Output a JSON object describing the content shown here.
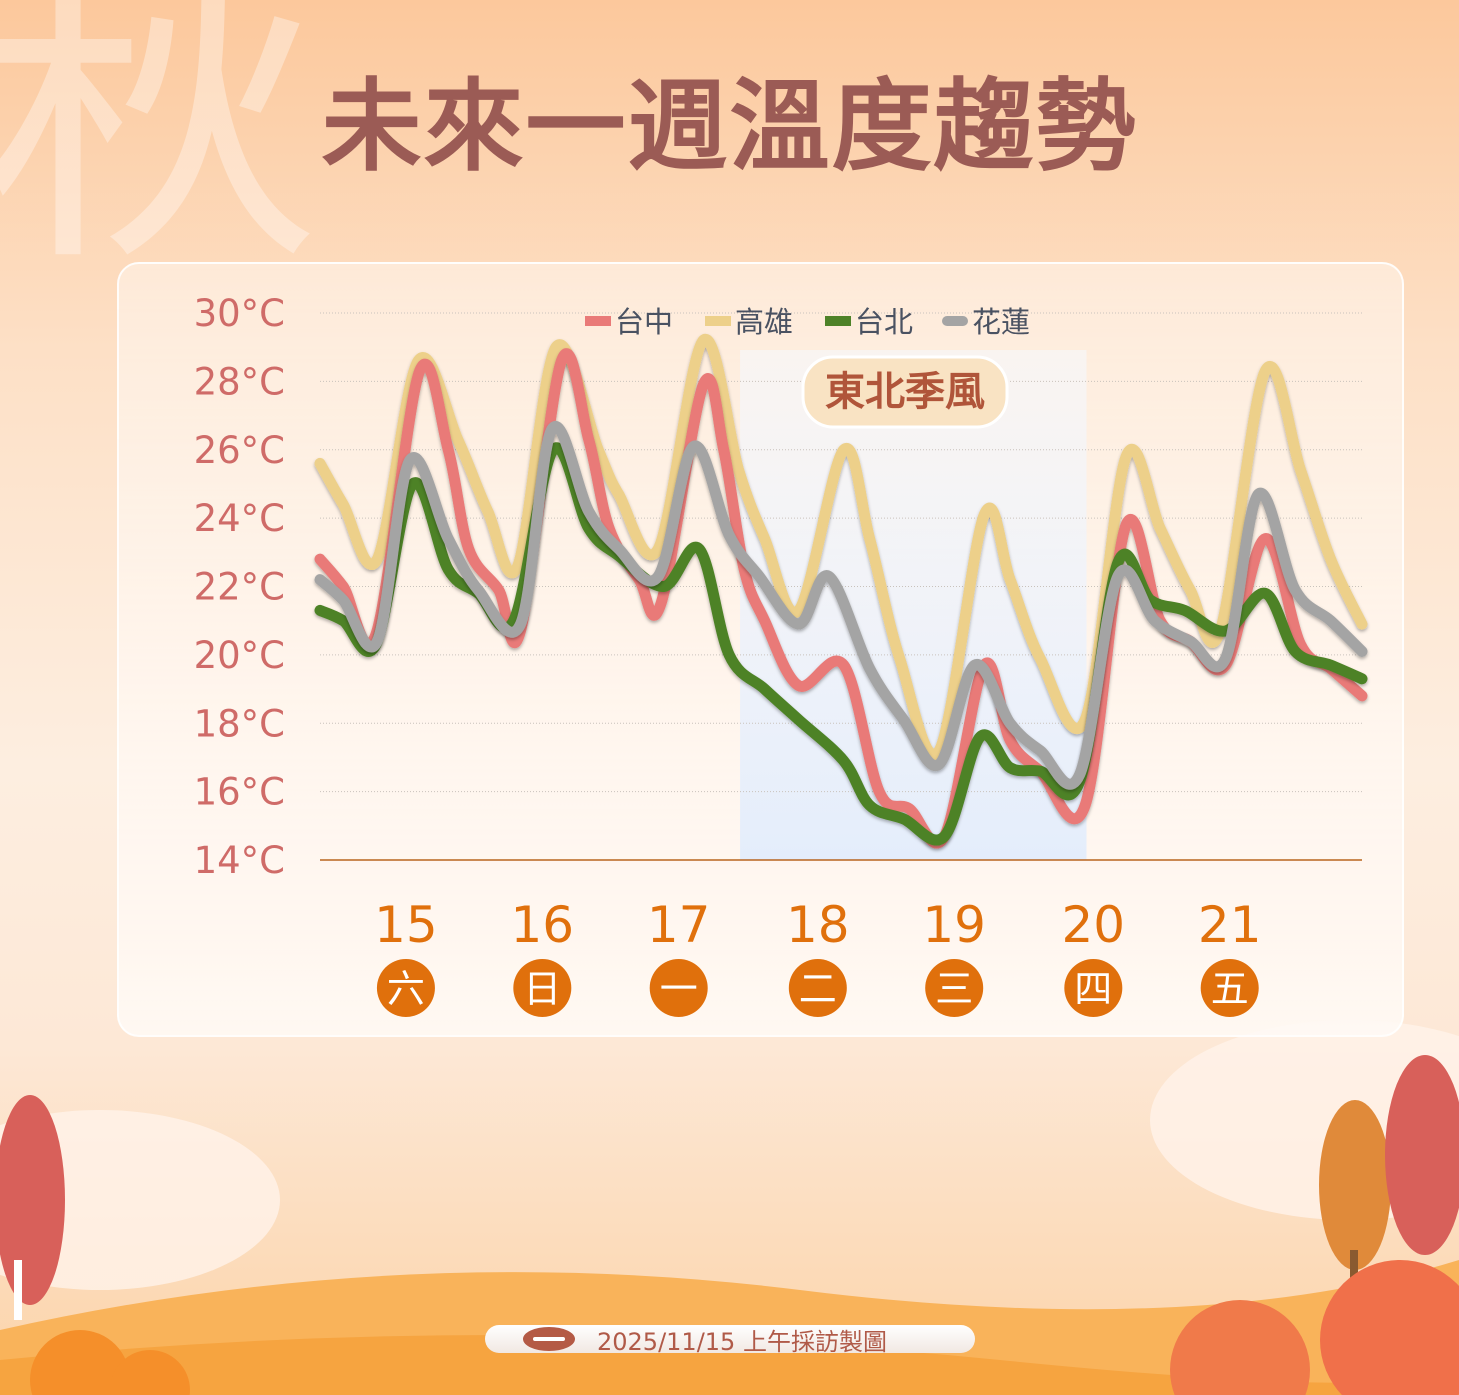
{
  "watermark": "秋",
  "title": "未來一週溫度趨勢",
  "footer": {
    "text": "2025/11/15 上午採訪製圖"
  },
  "colors": {
    "taichung": "#e97a78",
    "kaohsiung": "#edd08a",
    "taipei": "#4e8228",
    "hualien": "#a4a4a4",
    "axis_label": "#cf6b68",
    "day": "#e0700c",
    "title": "#9b5b55"
  },
  "chart_data": {
    "type": "line",
    "title": "未來一週溫度趨勢",
    "ylim": [
      14,
      30
    ],
    "yticks": [
      "14°C",
      "16°C",
      "18°C",
      "20°C",
      "22°C",
      "24°C",
      "26°C",
      "28°C",
      "30°C"
    ],
    "ytick_values": [
      14,
      16,
      18,
      20,
      22,
      24,
      26,
      28,
      30
    ],
    "xlim": [
      14.87,
      22.51
    ],
    "grid": true,
    "legend": "top-center",
    "days": [
      {
        "date": "15",
        "weekday": "六",
        "x": 15.5
      },
      {
        "date": "16",
        "weekday": "日",
        "x": 16.5
      },
      {
        "date": "17",
        "weekday": "一",
        "x": 17.5
      },
      {
        "date": "18",
        "weekday": "二",
        "x": 18.52
      },
      {
        "date": "19",
        "weekday": "三",
        "x": 19.52
      },
      {
        "date": "20",
        "weekday": "四",
        "x": 20.54
      },
      {
        "date": "21",
        "weekday": "五",
        "x": 21.54
      }
    ],
    "annotation": {
      "label": "東北季風",
      "x_range": [
        17.95,
        20.49
      ]
    },
    "series": [
      {
        "name": "台中",
        "key": "taichung",
        "points": [
          [
            14.87,
            22.8
          ],
          [
            15.04,
            22.0
          ],
          [
            15.28,
            20.6
          ],
          [
            15.6,
            28.3
          ],
          [
            15.81,
            26.0
          ],
          [
            15.96,
            23.1
          ],
          [
            16.18,
            21.9
          ],
          [
            16.34,
            20.7
          ],
          [
            16.64,
            28.6
          ],
          [
            16.84,
            26.3
          ],
          [
            16.99,
            23.7
          ],
          [
            17.21,
            22.2
          ],
          [
            17.37,
            21.5
          ],
          [
            17.68,
            27.9
          ],
          [
            17.83,
            26.0
          ],
          [
            17.98,
            22.5
          ],
          [
            18.13,
            21.0
          ],
          [
            18.38,
            19.1
          ],
          [
            18.71,
            19.7
          ],
          [
            18.97,
            16.0
          ],
          [
            19.19,
            15.5
          ],
          [
            19.45,
            14.7
          ],
          [
            19.74,
            19.7
          ],
          [
            19.93,
            17.5
          ],
          [
            20.15,
            16.6
          ],
          [
            20.48,
            15.6
          ],
          [
            20.78,
            23.8
          ],
          [
            21.03,
            21.0
          ],
          [
            21.25,
            20.4
          ],
          [
            21.51,
            19.7
          ],
          [
            21.8,
            23.4
          ],
          [
            22.06,
            20.3
          ],
          [
            22.28,
            19.6
          ],
          [
            22.51,
            18.8
          ]
        ]
      },
      {
        "name": "高雄",
        "key": "kaohsiung",
        "points": [
          [
            14.87,
            25.6
          ],
          [
            15.04,
            24.4
          ],
          [
            15.29,
            22.8
          ],
          [
            15.59,
            28.6
          ],
          [
            15.88,
            26.3
          ],
          [
            16.1,
            24.2
          ],
          [
            16.32,
            22.6
          ],
          [
            16.6,
            29.0
          ],
          [
            16.91,
            26.0
          ],
          [
            17.06,
            24.7
          ],
          [
            17.35,
            23.1
          ],
          [
            17.68,
            29.2
          ],
          [
            17.94,
            25.4
          ],
          [
            18.13,
            23.4
          ],
          [
            18.38,
            21.3
          ],
          [
            18.71,
            26.0
          ],
          [
            18.9,
            23.4
          ],
          [
            19.12,
            19.9
          ],
          [
            19.41,
            17.2
          ],
          [
            19.74,
            24.1
          ],
          [
            19.93,
            22.2
          ],
          [
            20.15,
            19.9
          ],
          [
            20.48,
            18.1
          ],
          [
            20.78,
            25.8
          ],
          [
            21.03,
            23.7
          ],
          [
            21.25,
            21.9
          ],
          [
            21.47,
            20.7
          ],
          [
            21.8,
            28.3
          ],
          [
            22.06,
            25.4
          ],
          [
            22.28,
            22.8
          ],
          [
            22.51,
            20.9
          ]
        ]
      },
      {
        "name": "台北",
        "key": "taipei",
        "points": [
          [
            14.87,
            21.3
          ],
          [
            15.04,
            21.0
          ],
          [
            15.28,
            20.3
          ],
          [
            15.55,
            25.0
          ],
          [
            15.81,
            22.5
          ],
          [
            16.03,
            21.8
          ],
          [
            16.29,
            21.0
          ],
          [
            16.58,
            26.0
          ],
          [
            16.84,
            23.7
          ],
          [
            17.06,
            22.9
          ],
          [
            17.39,
            22.0
          ],
          [
            17.65,
            23.1
          ],
          [
            17.87,
            20.0
          ],
          [
            18.13,
            19.0
          ],
          [
            18.38,
            18.1
          ],
          [
            18.71,
            16.9
          ],
          [
            18.9,
            15.6
          ],
          [
            19.15,
            15.2
          ],
          [
            19.45,
            14.7
          ],
          [
            19.71,
            17.6
          ],
          [
            19.93,
            16.7
          ],
          [
            20.15,
            16.6
          ],
          [
            20.44,
            16.3
          ],
          [
            20.72,
            22.7
          ],
          [
            20.96,
            21.6
          ],
          [
            21.21,
            21.3
          ],
          [
            21.51,
            20.7
          ],
          [
            21.8,
            21.8
          ],
          [
            22.02,
            20.1
          ],
          [
            22.28,
            19.7
          ],
          [
            22.51,
            19.3
          ]
        ]
      },
      {
        "name": "花蓮",
        "key": "hualien",
        "points": [
          [
            14.87,
            22.2
          ],
          [
            15.04,
            21.6
          ],
          [
            15.29,
            20.4
          ],
          [
            15.53,
            25.7
          ],
          [
            15.81,
            23.4
          ],
          [
            16.03,
            21.9
          ],
          [
            16.34,
            20.9
          ],
          [
            16.57,
            26.6
          ],
          [
            16.84,
            24.2
          ],
          [
            17.06,
            23.1
          ],
          [
            17.35,
            22.3
          ],
          [
            17.61,
            26.1
          ],
          [
            17.87,
            23.5
          ],
          [
            18.09,
            22.3
          ],
          [
            18.38,
            20.9
          ],
          [
            18.6,
            22.3
          ],
          [
            18.9,
            19.6
          ],
          [
            19.15,
            18.1
          ],
          [
            19.41,
            16.8
          ],
          [
            19.67,
            19.7
          ],
          [
            19.93,
            18.0
          ],
          [
            20.15,
            17.2
          ],
          [
            20.44,
            16.5
          ],
          [
            20.72,
            22.3
          ],
          [
            20.99,
            21.0
          ],
          [
            21.25,
            20.4
          ],
          [
            21.51,
            19.9
          ],
          [
            21.75,
            24.7
          ],
          [
            22.02,
            21.9
          ],
          [
            22.28,
            21.0
          ],
          [
            22.51,
            20.1
          ]
        ]
      }
    ]
  }
}
